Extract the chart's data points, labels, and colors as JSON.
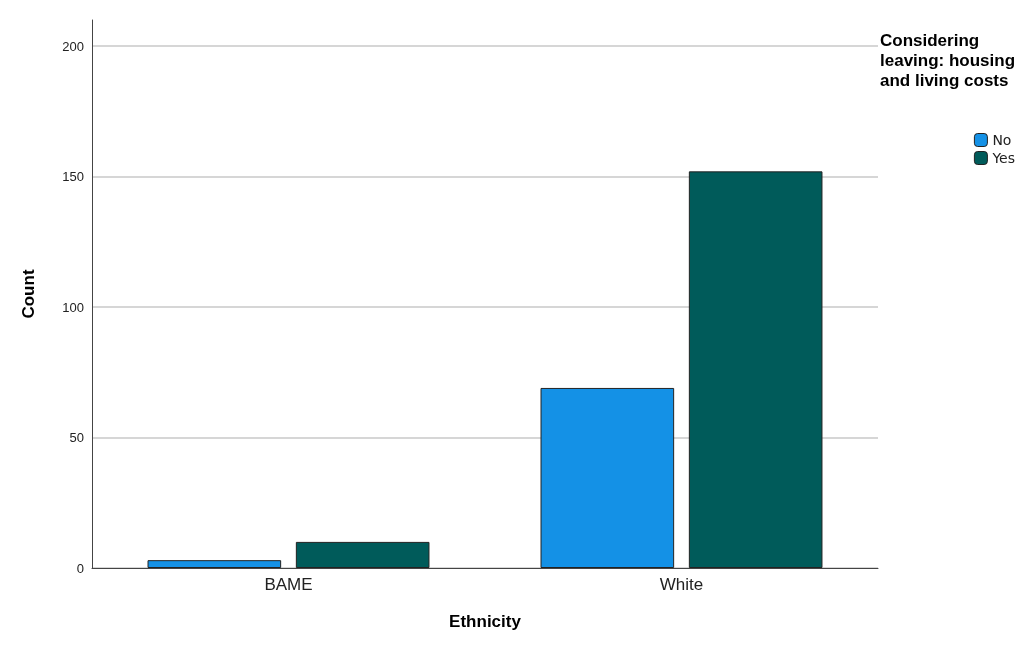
{
  "chart_data": {
    "type": "bar",
    "xlabel": "Ethnicity",
    "ylabel": "Count",
    "legend_title": "Considering leaving: housing and living costs",
    "categories": [
      "BAME",
      "White"
    ],
    "series": [
      {
        "name": "No",
        "color": "#1491e6",
        "values": [
          3,
          69
        ]
      },
      {
        "name": "Yes",
        "color": "#005b5a",
        "values": [
          10,
          152
        ]
      }
    ],
    "ylim": [
      0,
      210
    ],
    "yticks": [
      0,
      50,
      100,
      150,
      200
    ],
    "grid": "y",
    "legend": "top right"
  }
}
